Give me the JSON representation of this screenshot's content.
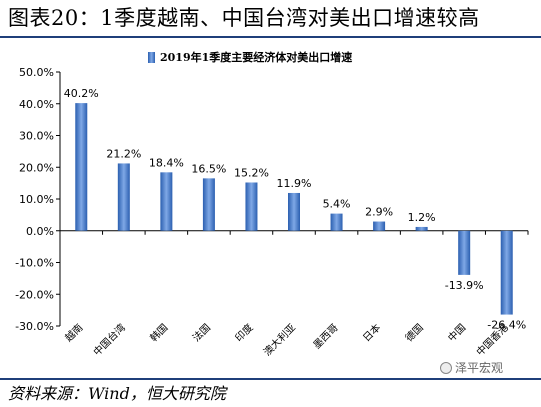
{
  "figure": {
    "title": "图表20：1季度越南、中国台湾对美出口增速较高",
    "source": "资料来源：Wind，恒大研究院",
    "watermark": "泽平宏观"
  },
  "colors": {
    "bar": "#4472c4",
    "rule": "#1f3f7a"
  },
  "chart_data": {
    "type": "bar",
    "categories": [
      "越南",
      "中国台湾",
      "韩国",
      "法国",
      "印度",
      "澳大利亚",
      "墨西哥",
      "日本",
      "德国",
      "中国",
      "中国香港"
    ],
    "series": [
      {
        "name": "2019年1季度主要经济体对美出口增速",
        "values": [
          40.2,
          21.2,
          18.4,
          16.5,
          15.2,
          11.9,
          5.4,
          2.9,
          1.2,
          -13.9,
          -26.4
        ],
        "labels": [
          "40.2%",
          "21.2%",
          "18.4%",
          "16.5%",
          "15.2%",
          "11.9%",
          "5.4%",
          "2.9%",
          "1.2%",
          "-13.9%",
          "-26.4%"
        ]
      }
    ],
    "yticks": [
      50,
      40,
      30,
      20,
      10,
      0,
      -10,
      -20,
      -30
    ],
    "ytick_labels": [
      "50.0%",
      "40.0%",
      "30.0%",
      "20.0%",
      "10.0%",
      "0.0%",
      "-10.0%",
      "-20.0%",
      "-30.0%"
    ],
    "ylim": [
      -30,
      50
    ],
    "grid": false,
    "legend_position": "top-left"
  }
}
